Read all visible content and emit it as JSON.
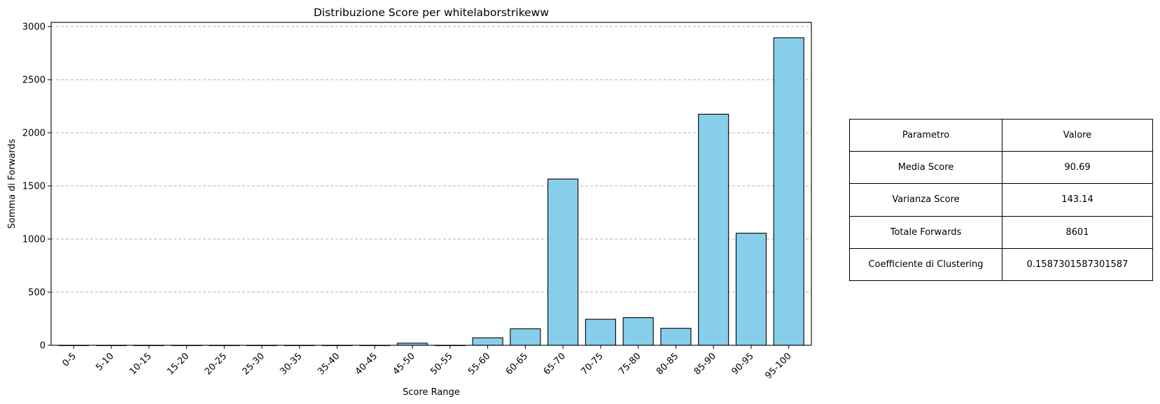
{
  "chart_data": {
    "type": "bar",
    "title": "Distribuzione Score per whitelaborstrikeww",
    "xlabel": "Score Range",
    "ylabel": "Somma di Forwards",
    "categories": [
      "0-5",
      "5-10",
      "10-15",
      "15-20",
      "20-25",
      "25-30",
      "30-35",
      "35-40",
      "40-45",
      "45-50",
      "50-55",
      "55-60",
      "60-65",
      "65-70",
      "70-75",
      "75-80",
      "80-85",
      "85-90",
      "90-95",
      "95-100"
    ],
    "values": [
      0,
      0,
      0,
      0,
      0,
      0,
      0,
      0,
      0,
      20,
      0,
      70,
      155,
      1565,
      245,
      260,
      160,
      2175,
      1055,
      2895
    ],
    "ylim": [
      0,
      3000
    ],
    "yticks": [
      0,
      500,
      1000,
      1500,
      2000,
      2500,
      3000
    ],
    "grid": "y-dashed",
    "bar_color": "#87CEEB",
    "edge_color": "#000000"
  },
  "table": {
    "header": [
      "Parametro",
      "Valore"
    ],
    "rows": [
      [
        "Media Score",
        "90.69"
      ],
      [
        "Varianza Score",
        "143.14"
      ],
      [
        "Totale Forwards",
        "8601"
      ],
      [
        "Coefficiente di Clustering",
        "0.1587301587301587"
      ]
    ]
  }
}
